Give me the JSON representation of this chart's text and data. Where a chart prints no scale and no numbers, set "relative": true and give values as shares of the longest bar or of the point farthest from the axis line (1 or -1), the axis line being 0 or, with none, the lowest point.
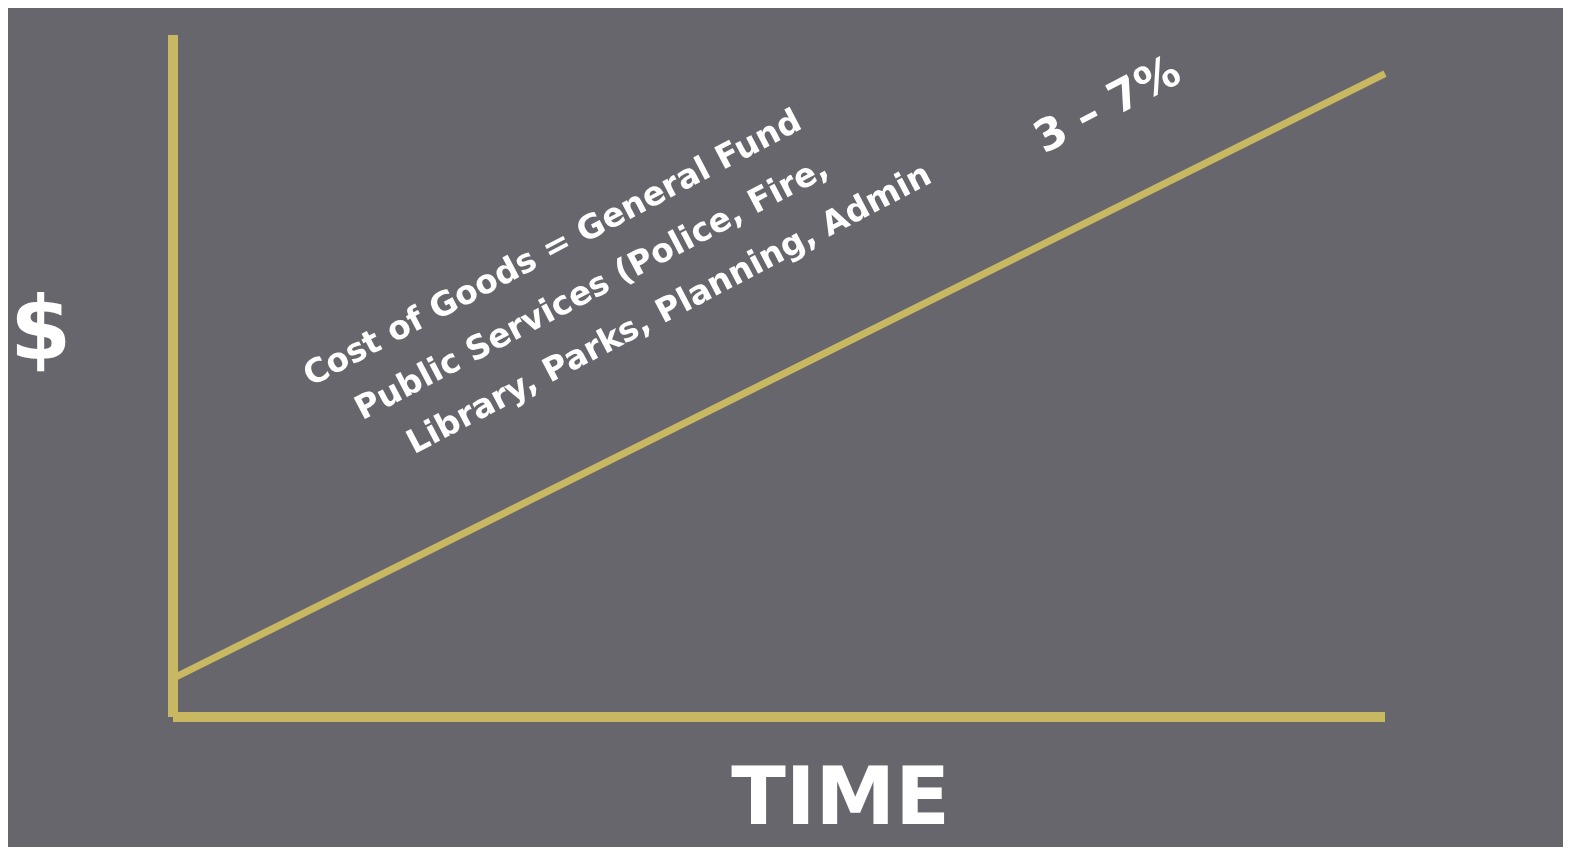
{
  "chart_data": {
    "type": "line",
    "relative": true,
    "categories": [
      null,
      null
    ],
    "series": [
      {
        "color": "#c9b862",
        "values": [
          0.06,
          1
        ]
      }
    ],
    "xlabel": "TIME",
    "ylabel": "$",
    "annotations": [
      "Cost of Goods = General Fund",
      "Public Services (Police, Fire,",
      "Library, Parks, Planning, Admin",
      "3 – 7%"
    ],
    "ref_lines": [
      {
        "axis": "y",
        "value": 0,
        "color": "#c9b862"
      }
    ],
    "marker": "none",
    "grid": false,
    "legend": false,
    "tick_labels": false
  }
}
